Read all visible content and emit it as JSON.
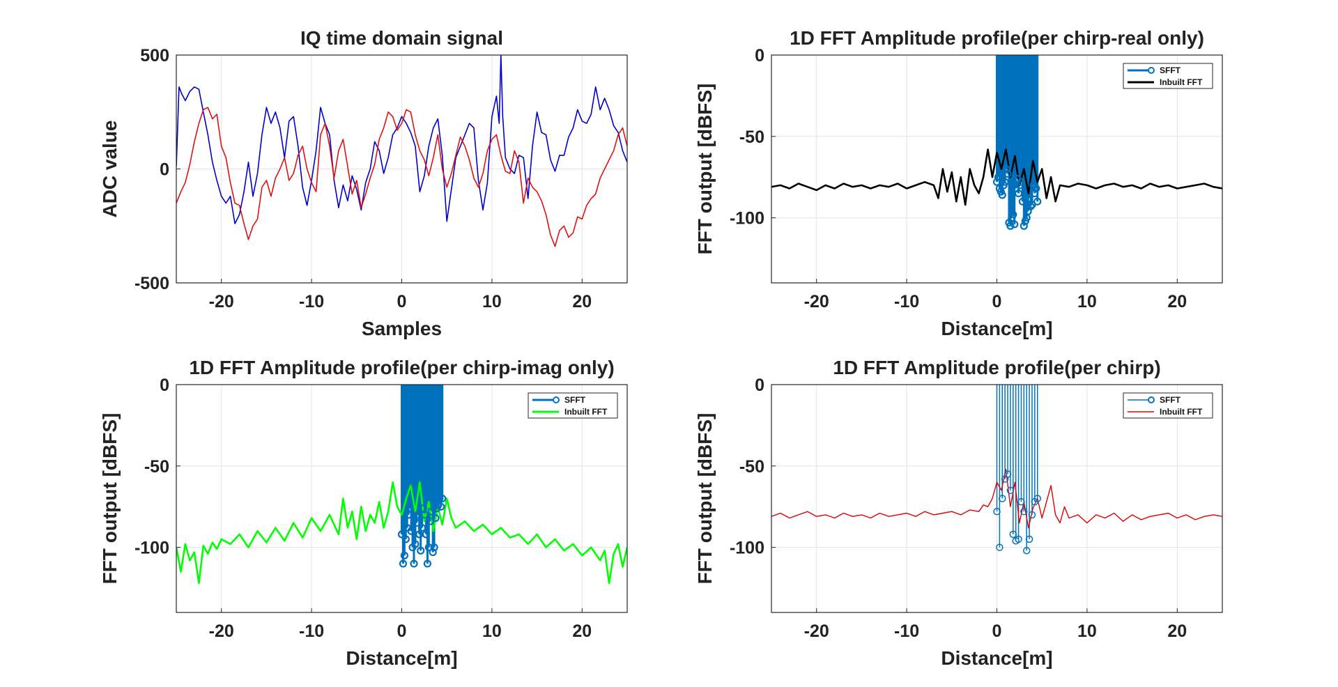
{
  "chart_data": [
    {
      "type": "line",
      "title": "IQ time domain signal",
      "xlabel": "Samples",
      "ylabel": "ADC value",
      "xlim": [
        -25,
        25
      ],
      "ylim": [
        -500,
        500
      ],
      "xticks": [
        -20,
        -10,
        0,
        10,
        20
      ],
      "yticks": [
        -500,
        0,
        500
      ],
      "grid": true,
      "legend": null,
      "series": [
        {
          "color": "#0000cc",
          "x": [
            -25,
            -24.7,
            -24.4,
            -24,
            -23.5,
            -23,
            -22.5,
            -22,
            -21.5,
            -21,
            -20.5,
            -20,
            -19.5,
            -19,
            -18.5,
            -18,
            -17.5,
            -17,
            -16.5,
            -16,
            -15.5,
            -15,
            -14.5,
            -14,
            -13.5,
            -13,
            -12.5,
            -12,
            -11.5,
            -11,
            -10.5,
            -10,
            -9.5,
            -9,
            -8.5,
            -8,
            -7.5,
            -7,
            -6.5,
            -6,
            -5.5,
            -5,
            -4.5,
            -4,
            -3.5,
            -3,
            -2.5,
            -2,
            -1.5,
            -1,
            -0.5,
            0,
            0.5,
            1,
            1.5,
            2,
            2.5,
            3,
            3.5,
            4,
            4.5,
            5,
            5.5,
            6,
            6.5,
            7,
            7.5,
            8,
            8.5,
            9,
            9.5,
            10,
            10.5,
            10.8,
            11,
            11.2,
            11.5,
            12,
            12.5,
            13,
            13.5,
            14,
            14.5,
            15,
            15.5,
            16,
            16.5,
            17,
            17.5,
            18,
            18.5,
            19,
            19.5,
            20,
            20.5,
            21,
            21.5,
            22,
            22.5,
            23,
            23.5,
            24,
            24.5,
            25
          ],
          "y": [
            10,
            360,
            330,
            300,
            340,
            360,
            350,
            250,
            150,
            30,
            -50,
            -120,
            -150,
            -120,
            -240,
            -200,
            -100,
            30,
            -120,
            -20,
            150,
            270,
            200,
            250,
            180,
            50,
            210,
            230,
            100,
            -80,
            -160,
            -50,
            80,
            270,
            200,
            150,
            -50,
            -170,
            -70,
            -140,
            -30,
            -90,
            -180,
            -60,
            0,
            120,
            80,
            -20,
            50,
            150,
            180,
            230,
            200,
            160,
            100,
            -100,
            -30,
            100,
            180,
            220,
            60,
            -230,
            -90,
            50,
            100,
            150,
            200,
            180,
            -50,
            -180,
            -60,
            230,
            320,
            200,
            500,
            230,
            50,
            0,
            -20,
            60,
            50,
            -130,
            100,
            250,
            160,
            150,
            40,
            -10,
            60,
            60,
            140,
            180,
            260,
            210,
            200,
            240,
            360,
            260,
            310,
            260,
            190,
            160,
            80,
            30
          ]
        },
        {
          "color": "#dd1111",
          "x": [
            -25,
            -24.5,
            -24,
            -23.5,
            -23,
            -22.5,
            -22,
            -21.5,
            -21,
            -20.5,
            -20,
            -19.5,
            -19,
            -18.5,
            -18,
            -17.5,
            -17,
            -16.5,
            -16,
            -15.5,
            -15,
            -14.5,
            -14,
            -13.5,
            -13,
            -12.5,
            -12,
            -11.5,
            -11,
            -10.5,
            -10,
            -9.5,
            -9,
            -8.5,
            -8,
            -7.5,
            -7,
            -6.5,
            -6,
            -5.5,
            -5,
            -4.5,
            -4,
            -3.5,
            -3,
            -2.5,
            -2,
            -1.5,
            -1,
            -0.5,
            0,
            0.5,
            1,
            1.5,
            2,
            2.5,
            3,
            3.5,
            4,
            4.5,
            5,
            5.5,
            6,
            6.5,
            7,
            7.5,
            8,
            8.5,
            9,
            9.5,
            10,
            10.5,
            11,
            11.5,
            12,
            12.5,
            13,
            13.5,
            14,
            14.5,
            15,
            15.5,
            16,
            16.5,
            17,
            17.5,
            18,
            18.5,
            19,
            19.5,
            20,
            20.5,
            21,
            21.5,
            22,
            22.5,
            23,
            23.5,
            24,
            24.5,
            25
          ],
          "y": [
            -150,
            -100,
            -60,
            20,
            120,
            200,
            260,
            270,
            220,
            240,
            100,
            50,
            -60,
            -150,
            -160,
            -240,
            -310,
            -250,
            -220,
            -80,
            -50,
            -120,
            -40,
            0,
            50,
            -50,
            -20,
            60,
            100,
            0,
            -60,
            -100,
            150,
            200,
            100,
            -40,
            80,
            130,
            10,
            -110,
            -50,
            -170,
            -110,
            -40,
            20,
            130,
            180,
            250,
            230,
            170,
            200,
            260,
            250,
            150,
            80,
            40,
            -30,
            50,
            150,
            0,
            -80,
            -20,
            60,
            140,
            100,
            40,
            -40,
            -80,
            -20,
            80,
            130,
            150,
            60,
            -10,
            -20,
            80,
            30,
            -150,
            -40,
            -80,
            -100,
            -140,
            -200,
            -290,
            -340,
            -270,
            -250,
            -300,
            -280,
            -210,
            -220,
            -160,
            -130,
            -110,
            -40,
            0,
            40,
            80,
            150,
            180,
            100
          ]
        }
      ]
    },
    {
      "type": "line",
      "title": "1D FFT Amplitude profile(per chirp-real only)",
      "xlabel": "Distance[m]",
      "ylabel": "FFT output [dBFS]",
      "xlim": [
        -25,
        25
      ],
      "ylim": [
        -140,
        0
      ],
      "xticks": [
        -20,
        -10,
        0,
        10,
        20
      ],
      "yticks": [
        -100,
        -50,
        0
      ],
      "grid": true,
      "legend": "top-right",
      "legend_entries": [
        "SFFT",
        "Inbuilt FFT"
      ],
      "stem": {
        "name": "SFFT",
        "color": "#0072bd",
        "x": [
          0,
          0.15,
          0.3,
          0.45,
          0.6,
          0.75,
          0.9,
          1.05,
          1.2,
          1.35,
          1.5,
          1.65,
          1.8,
          1.95,
          2.1,
          2.25,
          2.4,
          2.55,
          2.7,
          2.85,
          3.0,
          3.15,
          3.3,
          3.45,
          3.6,
          3.75,
          3.9,
          4.05,
          4.2,
          4.35,
          4.5
        ],
        "y": [
          -78,
          -75,
          -82,
          -84,
          -86,
          -80,
          -78,
          -70,
          -73,
          -103,
          -105,
          -100,
          -98,
          -104,
          -82,
          -76,
          -85,
          -80,
          -78,
          -90,
          -105,
          -102,
          -100,
          -96,
          -88,
          -93,
          -92,
          -80,
          -85,
          -82,
          -90
        ]
      },
      "series": [
        {
          "name": "Inbuilt FFT",
          "color": "#000000",
          "x": [
            -25,
            -24,
            -23,
            -22,
            -21,
            -20,
            -19,
            -18,
            -17,
            -16,
            -15,
            -14,
            -13,
            -12,
            -11,
            -10,
            -9,
            -8,
            -7,
            -6.5,
            -6,
            -5.5,
            -5,
            -4.5,
            -4,
            -3.5,
            -3,
            -2.5,
            -2,
            -1.5,
            -1,
            -0.5,
            0,
            0.5,
            1,
            1.5,
            2,
            2.5,
            3,
            3.5,
            4,
            4.5,
            5,
            5.5,
            6,
            6.5,
            7,
            8,
            9,
            10,
            11,
            12,
            13,
            14,
            15,
            16,
            17,
            18,
            19,
            20,
            21,
            22,
            23,
            24,
            25
          ],
          "y": [
            -81,
            -80,
            -82,
            -79,
            -81,
            -83,
            -80,
            -82,
            -79,
            -81,
            -80,
            -82,
            -80,
            -81,
            -79,
            -82,
            -80,
            -78,
            -80,
            -88,
            -70,
            -84,
            -72,
            -90,
            -75,
            -92,
            -70,
            -80,
            -85,
            -75,
            -58,
            -75,
            -60,
            -70,
            -58,
            -75,
            -62,
            -80,
            -70,
            -85,
            -65,
            -78,
            -70,
            -88,
            -75,
            -90,
            -80,
            -81,
            -79,
            -80,
            -82,
            -80,
            -79,
            -81,
            -80,
            -82,
            -79,
            -81,
            -80,
            -82,
            -81,
            -80,
            -79,
            -81,
            -82
          ]
        }
      ]
    },
    {
      "type": "line",
      "title": "1D FFT Amplitude profile(per chirp-imag only)",
      "xlabel": "Distance[m]",
      "ylabel": "FFT output [dBFS]",
      "xlim": [
        -25,
        25
      ],
      "ylim": [
        -140,
        0
      ],
      "xticks": [
        -20,
        -10,
        0,
        10,
        20
      ],
      "yticks": [
        -100,
        -50,
        0
      ],
      "grid": true,
      "legend": "top-right",
      "legend_entries": [
        "SFFT",
        "Inbuilt FFT"
      ],
      "stem": {
        "name": "SFFT",
        "color": "#0072bd",
        "x": [
          0,
          0.15,
          0.3,
          0.45,
          0.6,
          0.75,
          0.9,
          1.05,
          1.2,
          1.35,
          1.5,
          1.65,
          1.8,
          1.95,
          2.1,
          2.25,
          2.4,
          2.55,
          2.7,
          2.85,
          3.0,
          3.15,
          3.3,
          3.45,
          3.6,
          3.75,
          3.9,
          4.05,
          4.2,
          4.35,
          4.5
        ],
        "y": [
          -92,
          -110,
          -105,
          -95,
          -88,
          -80,
          -76,
          -90,
          -100,
          -110,
          -98,
          -85,
          -80,
          -92,
          -102,
          -88,
          -76,
          -80,
          -92,
          -110,
          -100,
          -84,
          -78,
          -103,
          -100,
          -82,
          -76,
          -74,
          -70,
          -75,
          -70
        ]
      },
      "series": [
        {
          "name": "Inbuilt FFT",
          "color": "#00ff00",
          "x": [
            -25,
            -24.5,
            -24,
            -23.5,
            -23,
            -22.5,
            -22,
            -21.5,
            -21,
            -20.5,
            -20,
            -19,
            -18,
            -17,
            -16,
            -15,
            -14,
            -13,
            -12,
            -11,
            -10,
            -9,
            -8,
            -7,
            -6.5,
            -6,
            -5.5,
            -5,
            -4.5,
            -4,
            -3.5,
            -3,
            -2.5,
            -2,
            -1.5,
            -1,
            -0.5,
            0,
            0.5,
            1,
            1.5,
            2,
            2.5,
            3,
            3.5,
            4,
            4.5,
            5,
            5.5,
            6,
            7,
            8,
            9,
            10,
            11,
            12,
            13,
            14,
            15,
            16,
            17,
            18,
            19,
            20,
            21,
            22,
            22.5,
            23,
            23.5,
            24,
            24.5,
            25
          ],
          "y": [
            -100,
            -115,
            -98,
            -108,
            -103,
            -122,
            -99,
            -104,
            -97,
            -101,
            -95,
            -98,
            -92,
            -100,
            -90,
            -97,
            -88,
            -96,
            -85,
            -94,
            -82,
            -90,
            -80,
            -92,
            -70,
            -88,
            -78,
            -95,
            -75,
            -90,
            -80,
            -85,
            -72,
            -88,
            -78,
            -60,
            -75,
            -80,
            -70,
            -62,
            -78,
            -60,
            -84,
            -72,
            -90,
            -75,
            -86,
            -70,
            -82,
            -88,
            -84,
            -90,
            -86,
            -92,
            -88,
            -94,
            -92,
            -98,
            -92,
            -100,
            -95,
            -102,
            -98,
            -105,
            -100,
            -108,
            -102,
            -122,
            -104,
            -98,
            -112,
            -100
          ]
        }
      ]
    },
    {
      "type": "line",
      "title": "1D FFT Amplitude profile(per chirp)",
      "xlabel": "Distance[m]",
      "ylabel": "FFT output [dBFS]",
      "xlim": [
        -25,
        25
      ],
      "ylim": [
        -140,
        0
      ],
      "xticks": [
        -20,
        -10,
        0,
        10,
        20
      ],
      "yticks": [
        -100,
        -50,
        0
      ],
      "grid": true,
      "legend": "top-right",
      "legend_entries": [
        "SFFT",
        "Inbuilt FFT"
      ],
      "stem": {
        "name": "SFFT",
        "color": "#0072bd",
        "x": [
          0,
          0.3,
          0.6,
          0.9,
          1.2,
          1.5,
          1.8,
          2.1,
          2.4,
          2.7,
          3.0,
          3.3,
          3.6,
          3.9,
          4.2,
          4.5
        ],
        "y": [
          -78,
          -100,
          -70,
          -58,
          -55,
          -65,
          -92,
          -96,
          -95,
          -72,
          -78,
          -102,
          -95,
          -80,
          -72,
          -70
        ]
      },
      "series": [
        {
          "name": "Inbuilt FFT",
          "color": "#dd0000",
          "x": [
            -25,
            -24,
            -23,
            -22,
            -21,
            -20,
            -19,
            -18,
            -17,
            -16,
            -15,
            -14,
            -13,
            -12,
            -11,
            -10,
            -9,
            -8,
            -7,
            -6,
            -5,
            -4,
            -3,
            -2,
            -1.5,
            -1,
            -0.5,
            0,
            0.5,
            1,
            1.5,
            2,
            2.5,
            3,
            3.5,
            4,
            4.5,
            5,
            5.5,
            6,
            6.5,
            7,
            7.5,
            8,
            9,
            10,
            11,
            12,
            13,
            14,
            15,
            16,
            17,
            18,
            19,
            20,
            21,
            22,
            23,
            24,
            25
          ],
          "y": [
            -81,
            -79,
            -82,
            -80,
            -78,
            -81,
            -80,
            -82,
            -79,
            -81,
            -80,
            -82,
            -79,
            -81,
            -80,
            -79,
            -81,
            -78,
            -80,
            -79,
            -78,
            -80,
            -77,
            -78,
            -74,
            -75,
            -70,
            -60,
            -65,
            -52,
            -75,
            -60,
            -85,
            -72,
            -88,
            -76,
            -70,
            -82,
            -72,
            -62,
            -80,
            -85,
            -75,
            -82,
            -80,
            -85,
            -80,
            -82,
            -79,
            -84,
            -80,
            -83,
            -81,
            -80,
            -79,
            -82,
            -80,
            -83,
            -81,
            -80,
            -81
          ]
        }
      ]
    }
  ]
}
